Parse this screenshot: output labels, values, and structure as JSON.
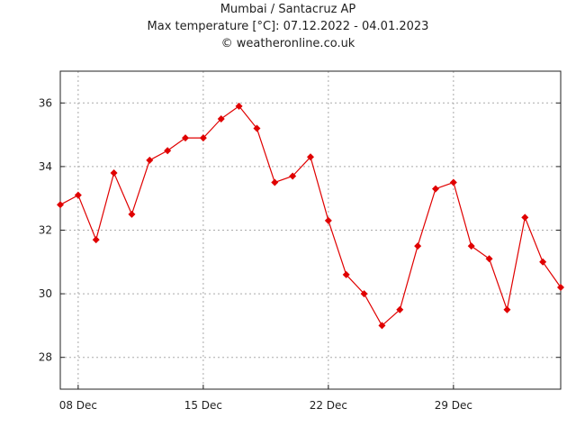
{
  "header": {
    "title": "Mumbai / Santacruz AP",
    "subtitle": "Max temperature [°C]: 07.12.2022 - 04.01.2023",
    "credit": "© weatheronline.co.uk"
  },
  "chart_data": {
    "type": "line",
    "title": "Mumbai / Santacruz AP",
    "subtitle": "Max temperature [°C]: 07.12.2022 - 04.01.2023",
    "xlabel": "",
    "ylabel": "",
    "x": [
      "07.12.2022",
      "08.12.2022",
      "09.12.2022",
      "10.12.2022",
      "11.12.2022",
      "12.12.2022",
      "13.12.2022",
      "14.12.2022",
      "15.12.2022",
      "16.12.2022",
      "17.12.2022",
      "18.12.2022",
      "19.12.2022",
      "20.12.2022",
      "21.12.2022",
      "22.12.2022",
      "23.12.2022",
      "24.12.2022",
      "25.12.2022",
      "26.12.2022",
      "27.12.2022",
      "28.12.2022",
      "29.12.2022",
      "30.12.2022",
      "31.12.2022",
      "01.01.2023",
      "02.01.2023",
      "03.01.2023",
      "04.01.2023"
    ],
    "values": [
      32.8,
      33.1,
      31.7,
      33.8,
      32.5,
      34.2,
      34.5,
      34.9,
      34.9,
      35.5,
      35.9,
      35.2,
      33.5,
      33.7,
      34.3,
      32.3,
      30.6,
      30.0,
      29.0,
      29.5,
      31.5,
      33.3,
      33.5,
      31.5,
      31.1,
      29.5,
      32.4,
      31.0,
      30.2
    ],
    "ylim": [
      27,
      37
    ],
    "yticks": [
      28,
      30,
      32,
      34,
      36
    ],
    "xtick_labels": [
      "08 Dec",
      "15 Dec",
      "22 Dec",
      "29 Dec"
    ],
    "xtick_index": [
      1,
      8,
      15,
      22
    ],
    "grid": true,
    "line_color": "#e00000",
    "marker_color": "#e00000",
    "grid_color": "#aaaaaa"
  }
}
